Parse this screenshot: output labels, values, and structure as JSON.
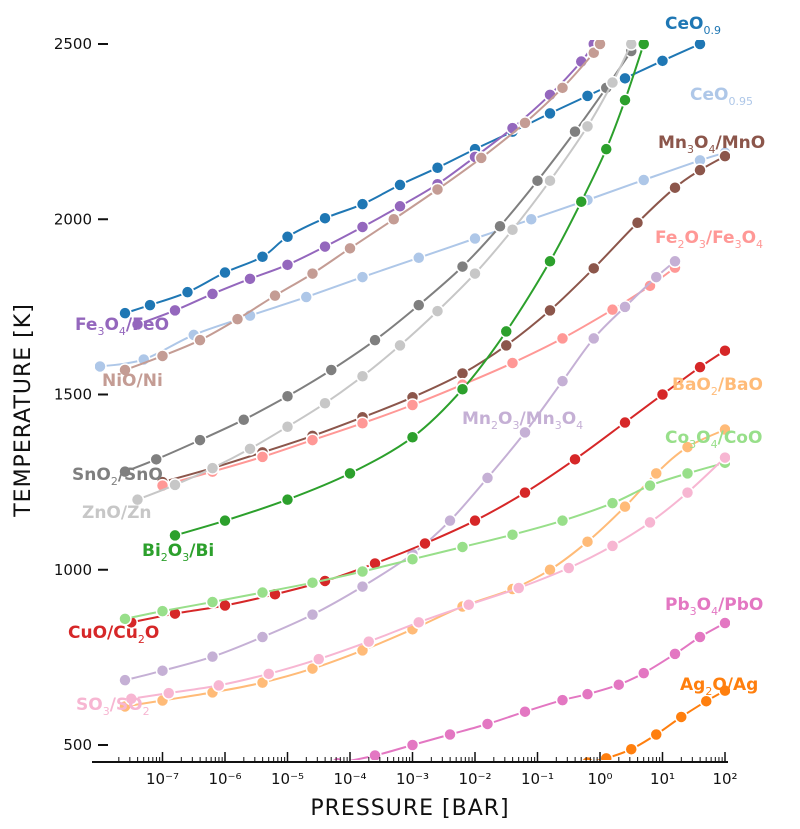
{
  "chart_data": {
    "type": "line",
    "title": "",
    "xlabel": "PRESSURE [BAR]",
    "ylabel": "TEMPERATURE [K]",
    "xscale": "log",
    "xlim_log10": [
      -8,
      2
    ],
    "ylim": [
      450,
      2500
    ],
    "x_ticks": [
      {
        "exp": -7,
        "label": "10-7"
      },
      {
        "exp": -6,
        "label": "10-6"
      },
      {
        "exp": -5,
        "label": "10-5"
      },
      {
        "exp": -4,
        "label": "10-4"
      },
      {
        "exp": -3,
        "label": "10-3"
      },
      {
        "exp": -2,
        "label": "10-2"
      },
      {
        "exp": -1,
        "label": "10-1"
      },
      {
        "exp": 0,
        "label": "10 0"
      },
      {
        "exp": 1,
        "label": "10 1"
      },
      {
        "exp": 2,
        "label": "10 2"
      }
    ],
    "x_ticks_display": [
      "10⁻⁷",
      "10⁻⁶",
      "10⁻⁵",
      "10⁻⁴",
      "10⁻³",
      "10⁻²",
      "10⁻¹",
      "10⁰",
      "10¹",
      "10²"
    ],
    "y_ticks": [
      500,
      1000,
      1500,
      2000,
      2500
    ],
    "grid": false,
    "legend": "inline labels",
    "series": [
      {
        "name": "CeO0.9",
        "color": "#1f77b4",
        "label_pos": "top-right",
        "points": [
          [
            -7.6,
            1732
          ],
          [
            -7.2,
            1755
          ],
          [
            -6.6,
            1792
          ],
          [
            -6.0,
            1848
          ],
          [
            -5.4,
            1893
          ],
          [
            -5.0,
            1950
          ],
          [
            -4.4,
            2003
          ],
          [
            -3.8,
            2043
          ],
          [
            -3.2,
            2098
          ],
          [
            -2.6,
            2147
          ],
          [
            -2.0,
            2200
          ],
          [
            -1.4,
            2250
          ],
          [
            -0.8,
            2302
          ],
          [
            -0.2,
            2352
          ],
          [
            0.4,
            2402
          ],
          [
            1.0,
            2452
          ],
          [
            1.6,
            2500
          ]
        ]
      },
      {
        "name": "CeO0.95",
        "color": "#aec7e8",
        "label_pos": "right",
        "points": [
          [
            -8.0,
            1580
          ],
          [
            -7.3,
            1600
          ],
          [
            -6.5,
            1670
          ],
          [
            -5.6,
            1725
          ],
          [
            -4.7,
            1778
          ],
          [
            -3.8,
            1835
          ],
          [
            -2.9,
            1890
          ],
          [
            -2.0,
            1945
          ],
          [
            -1.1,
            2000
          ],
          [
            -0.2,
            2055
          ],
          [
            0.7,
            2112
          ],
          [
            1.6,
            2168
          ],
          [
            2.0,
            2190
          ]
        ]
      },
      {
        "name": "Fe3O4/FeO",
        "color": "#9467bd",
        "label_pos": "left",
        "points": [
          [
            -7.4,
            1700
          ],
          [
            -6.8,
            1740
          ],
          [
            -6.2,
            1787
          ],
          [
            -5.6,
            1830
          ],
          [
            -5.0,
            1870
          ],
          [
            -4.4,
            1922
          ],
          [
            -3.8,
            1978
          ],
          [
            -3.2,
            2037
          ],
          [
            -2.6,
            2100
          ],
          [
            -2.0,
            2178
          ],
          [
            -1.4,
            2260
          ],
          [
            -0.8,
            2355
          ],
          [
            -0.3,
            2450
          ],
          [
            -0.1,
            2500
          ]
        ]
      },
      {
        "name": "NiO/Ni",
        "color": "#c49c94",
        "label_pos": "left",
        "points": [
          [
            -7.6,
            1570
          ],
          [
            -7.0,
            1610
          ],
          [
            -6.4,
            1655
          ],
          [
            -5.8,
            1715
          ],
          [
            -5.2,
            1782
          ],
          [
            -4.6,
            1845
          ],
          [
            -4.0,
            1917
          ],
          [
            -3.3,
            2000
          ],
          [
            -2.6,
            2085
          ],
          [
            -1.9,
            2175
          ],
          [
            -1.2,
            2275
          ],
          [
            -0.6,
            2375
          ],
          [
            -0.1,
            2475
          ],
          [
            0.0,
            2500
          ]
        ]
      },
      {
        "name": "Mn3O4/MnO",
        "color": "#8c564b",
        "label_pos": "right",
        "points": [
          [
            -7.0,
            1250
          ],
          [
            -6.2,
            1290
          ],
          [
            -5.4,
            1335
          ],
          [
            -4.6,
            1382
          ],
          [
            -3.8,
            1435
          ],
          [
            -3.0,
            1492
          ],
          [
            -2.2,
            1560
          ],
          [
            -1.5,
            1640
          ],
          [
            -0.8,
            1740
          ],
          [
            -0.1,
            1860
          ],
          [
            0.6,
            1990
          ],
          [
            1.2,
            2090
          ],
          [
            1.6,
            2140
          ],
          [
            2.0,
            2180
          ]
        ]
      },
      {
        "name": "Fe2O3/Fe3O4",
        "color": "#ff9896",
        "label_pos": "right",
        "points": [
          [
            -7.0,
            1240
          ],
          [
            -6.2,
            1280
          ],
          [
            -5.4,
            1322
          ],
          [
            -4.6,
            1370
          ],
          [
            -3.8,
            1418
          ],
          [
            -3.0,
            1470
          ],
          [
            -2.2,
            1528
          ],
          [
            -1.4,
            1590
          ],
          [
            -0.6,
            1660
          ],
          [
            0.2,
            1742
          ],
          [
            0.8,
            1810
          ],
          [
            1.2,
            1862
          ]
        ]
      },
      {
        "name": "SnO2/SnO",
        "color": "#7f7f7f",
        "label_pos": "left",
        "points": [
          [
            -7.6,
            1280
          ],
          [
            -7.1,
            1315
          ],
          [
            -6.4,
            1370
          ],
          [
            -5.7,
            1428
          ],
          [
            -5.0,
            1495
          ],
          [
            -4.3,
            1570
          ],
          [
            -3.6,
            1655
          ],
          [
            -2.9,
            1755
          ],
          [
            -2.2,
            1865
          ],
          [
            -1.6,
            1980
          ],
          [
            -1.0,
            2110
          ],
          [
            -0.4,
            2250
          ],
          [
            0.1,
            2375
          ],
          [
            0.5,
            2480
          ]
        ]
      },
      {
        "name": "ZnO/Zn",
        "color": "#c7c7c7",
        "label_pos": "left",
        "points": [
          [
            -7.4,
            1200
          ],
          [
            -6.8,
            1242
          ],
          [
            -6.2,
            1290
          ],
          [
            -5.6,
            1345
          ],
          [
            -5.0,
            1408
          ],
          [
            -4.4,
            1475
          ],
          [
            -3.8,
            1552
          ],
          [
            -3.2,
            1640
          ],
          [
            -2.6,
            1738
          ],
          [
            -2.0,
            1845
          ],
          [
            -1.4,
            1970
          ],
          [
            -0.8,
            2110
          ],
          [
            -0.2,
            2265
          ],
          [
            0.2,
            2390
          ],
          [
            0.5,
            2500
          ]
        ]
      },
      {
        "name": "Bi2O3/Bi",
        "color": "#2ca02c",
        "label_pos": "left",
        "points": [
          [
            -6.8,
            1098
          ],
          [
            -6.0,
            1140
          ],
          [
            -5.0,
            1200
          ],
          [
            -4.0,
            1275
          ],
          [
            -3.0,
            1378
          ],
          [
            -2.2,
            1515
          ],
          [
            -1.5,
            1680
          ],
          [
            -0.8,
            1880
          ],
          [
            -0.3,
            2050
          ],
          [
            0.1,
            2200
          ],
          [
            0.4,
            2340
          ],
          [
            0.7,
            2500
          ]
        ]
      },
      {
        "name": "Mn2O3/Mn3O4",
        "color": "#c5b0d5",
        "label_pos": "right",
        "points": [
          [
            -7.6,
            685
          ],
          [
            -7.0,
            712
          ],
          [
            -6.2,
            752
          ],
          [
            -5.4,
            808
          ],
          [
            -4.6,
            872
          ],
          [
            -3.8,
            952
          ],
          [
            -3.0,
            1045
          ],
          [
            -2.4,
            1140
          ],
          [
            -1.8,
            1262
          ],
          [
            -1.2,
            1392
          ],
          [
            -0.6,
            1538
          ],
          [
            -0.1,
            1660
          ],
          [
            0.4,
            1750
          ],
          [
            0.9,
            1835
          ],
          [
            1.2,
            1880
          ]
        ]
      },
      {
        "name": "CuO/Cu2O",
        "color": "#d62728",
        "label_pos": "left",
        "points": [
          [
            -7.5,
            850
          ],
          [
            -6.8,
            875
          ],
          [
            -6.0,
            898
          ],
          [
            -5.2,
            930
          ],
          [
            -4.4,
            968
          ],
          [
            -3.6,
            1018
          ],
          [
            -2.8,
            1075
          ],
          [
            -2.0,
            1140
          ],
          [
            -1.2,
            1220
          ],
          [
            -0.4,
            1315
          ],
          [
            0.4,
            1420
          ],
          [
            1.0,
            1500
          ],
          [
            1.6,
            1578
          ],
          [
            2.0,
            1625
          ]
        ]
      },
      {
        "name": "BaO2/BaO",
        "color": "#ffbb78",
        "label_pos": "right",
        "points": [
          [
            -7.6,
            610
          ],
          [
            -7.0,
            627
          ],
          [
            -6.2,
            650
          ],
          [
            -5.4,
            678
          ],
          [
            -4.6,
            718
          ],
          [
            -3.8,
            770
          ],
          [
            -3.0,
            830
          ],
          [
            -2.2,
            895
          ],
          [
            -1.4,
            945
          ],
          [
            -0.8,
            1000
          ],
          [
            -0.2,
            1080
          ],
          [
            0.4,
            1180
          ],
          [
            0.9,
            1275
          ],
          [
            1.4,
            1350
          ],
          [
            2.0,
            1400
          ]
        ]
      },
      {
        "name": "Co3O4/CoO",
        "color": "#98df8a",
        "label_pos": "right",
        "points": [
          [
            -7.6,
            860
          ],
          [
            -7.0,
            882
          ],
          [
            -6.2,
            908
          ],
          [
            -5.4,
            935
          ],
          [
            -4.6,
            963
          ],
          [
            -3.8,
            995
          ],
          [
            -3.0,
            1030
          ],
          [
            -2.2,
            1065
          ],
          [
            -1.4,
            1100
          ],
          [
            -0.6,
            1140
          ],
          [
            0.2,
            1190
          ],
          [
            0.8,
            1240
          ],
          [
            1.4,
            1275
          ],
          [
            2.0,
            1305
          ]
        ]
      },
      {
        "name": "SO3/SO2",
        "color": "#f7b6d2",
        "label_pos": "left",
        "points": [
          [
            -7.5,
            632
          ],
          [
            -6.9,
            648
          ],
          [
            -6.1,
            670
          ],
          [
            -5.3,
            703
          ],
          [
            -4.5,
            745
          ],
          [
            -3.7,
            795
          ],
          [
            -2.9,
            850
          ],
          [
            -2.1,
            900
          ],
          [
            -1.3,
            948
          ],
          [
            -0.5,
            1005
          ],
          [
            0.2,
            1068
          ],
          [
            0.8,
            1135
          ],
          [
            1.4,
            1220
          ],
          [
            2.0,
            1320
          ]
        ]
      },
      {
        "name": "Pb3O4/PbO",
        "color": "#e377c2",
        "label_pos": "right",
        "points": [
          [
            -4.2,
            448
          ],
          [
            -3.6,
            470
          ],
          [
            -3.0,
            500
          ],
          [
            -2.4,
            530
          ],
          [
            -1.8,
            560
          ],
          [
            -1.2,
            595
          ],
          [
            -0.6,
            628
          ],
          [
            -0.2,
            645
          ],
          [
            0.3,
            672
          ],
          [
            0.7,
            705
          ],
          [
            1.2,
            760
          ],
          [
            1.6,
            808
          ],
          [
            2.0,
            848
          ]
        ]
      },
      {
        "name": "Ag2O/Ag",
        "color": "#ff7f0e",
        "label_pos": "right",
        "points": [
          [
            -0.2,
            450
          ],
          [
            0.1,
            462
          ],
          [
            0.5,
            488
          ],
          [
            0.9,
            530
          ],
          [
            1.3,
            580
          ],
          [
            1.7,
            625
          ],
          [
            2.0,
            655
          ]
        ]
      }
    ],
    "label_texts": {
      "CeO0.9": [
        "CeO",
        "0.9",
        ""
      ],
      "CeO0.95": [
        "CeO",
        "0.95",
        ""
      ],
      "Fe3O4/FeO": [
        "Fe",
        "3",
        "O",
        "4",
        "/FeO"
      ],
      "NiO/Ni": [
        "NiO/Ni"
      ],
      "Mn3O4/MnO": [
        "Mn",
        "3",
        "O",
        "4",
        "/MnO"
      ],
      "Fe2O3/Fe3O4": [
        "Fe",
        "2",
        "O",
        "3",
        "/Fe",
        "3",
        "O",
        "4"
      ],
      "SnO2/SnO": [
        "SnO",
        "2",
        "/SnO"
      ],
      "ZnO/Zn": [
        "ZnO/Zn"
      ],
      "Bi2O3/Bi": [
        "Bi",
        "2",
        "O",
        "3",
        "/Bi"
      ],
      "Mn2O3/Mn3O4": [
        "Mn",
        "2",
        "O",
        "3",
        "/Mn",
        "3",
        "O",
        "4"
      ],
      "CuO/Cu2O": [
        "CuO/Cu",
        "2",
        "O"
      ],
      "BaO2/BaO": [
        "BaO",
        "2",
        "/BaO"
      ],
      "Co3O4/CoO": [
        "Co",
        "3",
        "O",
        "4",
        "/CoO"
      ],
      "SO3/SO2": [
        "SO",
        "3",
        "/SO",
        "2"
      ],
      "Pb3O4/PbO": [
        "Pb",
        "3",
        "O",
        "4",
        "/PbO"
      ],
      "Ag2O/Ag": [
        "Ag",
        "2",
        "O/Ag"
      ]
    }
  }
}
